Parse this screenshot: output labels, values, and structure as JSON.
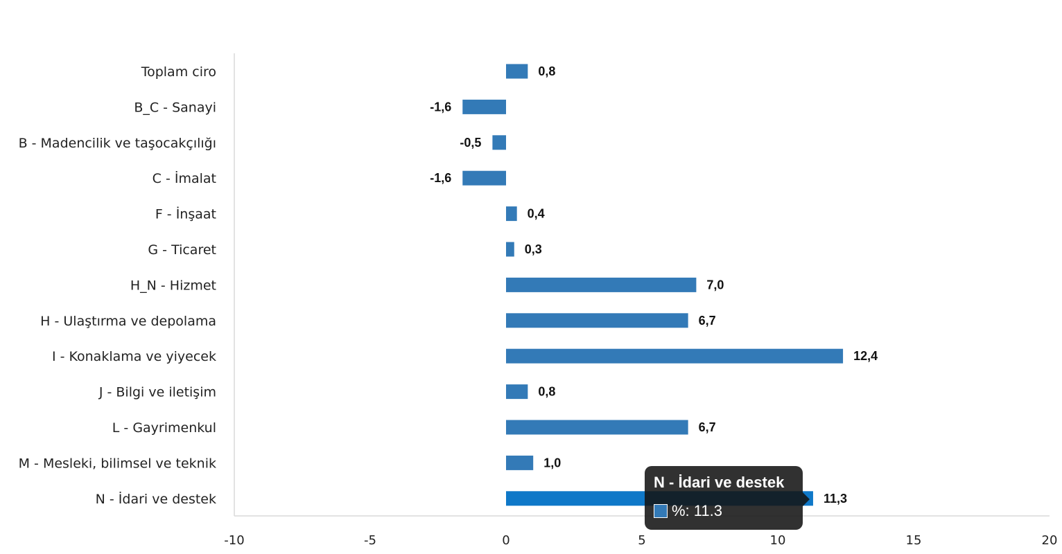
{
  "chart_data": {
    "type": "bar",
    "orientation": "horizontal",
    "categories": [
      "Toplam ciro",
      "B_C - Sanayi",
      "B - Madencilik ve taşocakçılığı",
      "C - İmalat",
      "F - İnşaat",
      "G - Ticaret",
      "H_N - Hizmet",
      "H - Ulaştırma ve depolama",
      "I - Konaklama ve yiyecek",
      "J - Bilgi ve iletişim",
      "L - Gayrimenkul",
      "M - Mesleki, bilimsel ve teknik",
      "N - İdari ve destek"
    ],
    "values": [
      0.8,
      -1.6,
      -0.5,
      -1.6,
      0.4,
      0.3,
      7.0,
      6.7,
      12.4,
      0.8,
      6.7,
      1.0,
      11.3
    ],
    "data_labels": [
      "0,8",
      "-1,6",
      "-0,5",
      "-1,6",
      "0,4",
      "0,3",
      "7,0",
      "6,7",
      "12,4",
      "0,8",
      "6,7",
      "1,0",
      "11,3"
    ],
    "xlim": [
      -10,
      20
    ],
    "xticks": [
      -10,
      -5,
      0,
      5,
      10,
      15,
      20
    ],
    "xtick_labels": [
      "-10",
      "-5",
      "0",
      "5",
      "10",
      "15",
      "20"
    ],
    "highlighted_index": 12,
    "grid": false,
    "colors": {
      "bar": "#337ab7",
      "bar_highlight": "#0f78c8",
      "axis": "#d9d9d9"
    }
  },
  "tooltip": {
    "title": "N - İdari ve destek",
    "value_text": "%: 11.3",
    "swatch_color": "#337ab7"
  }
}
